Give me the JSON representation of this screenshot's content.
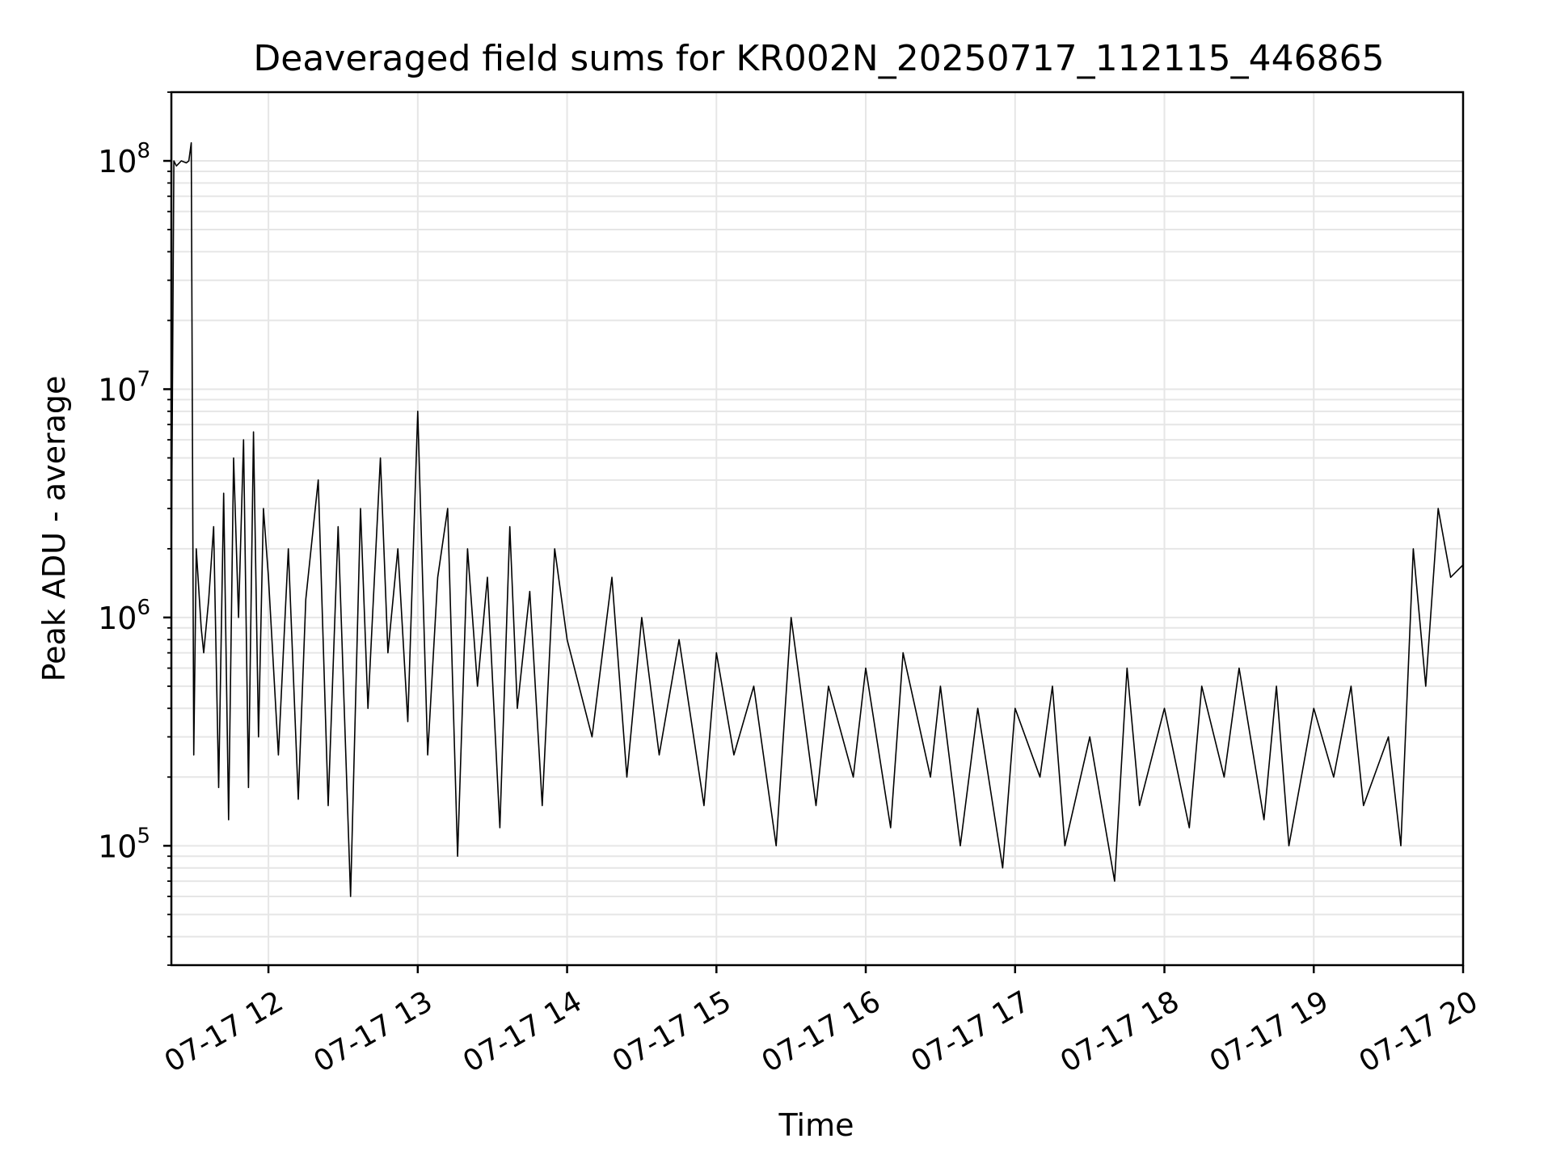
{
  "chart_data": {
    "type": "line",
    "title": "Deaveraged field sums for KR002N_20250717_112115_446865",
    "xlabel": "Time",
    "ylabel": "Peak ADU - average",
    "yscale": "log",
    "ylim": [
      30000,
      200000000
    ],
    "xlim": [
      "2025-07-17 11:21",
      "2025-07-17 20:00"
    ],
    "x_ticks": [
      {
        "value": "2025-07-17 12:00",
        "label": "07-17 12"
      },
      {
        "value": "2025-07-17 13:00",
        "label": "07-17 13"
      },
      {
        "value": "2025-07-17 14:00",
        "label": "07-17 14"
      },
      {
        "value": "2025-07-17 15:00",
        "label": "07-17 15"
      },
      {
        "value": "2025-07-17 16:00",
        "label": "07-17 16"
      },
      {
        "value": "2025-07-17 17:00",
        "label": "07-17 17"
      },
      {
        "value": "2025-07-17 18:00",
        "label": "07-17 18"
      },
      {
        "value": "2025-07-17 19:00",
        "label": "07-17 19"
      },
      {
        "value": "2025-07-17 20:00",
        "label": "07-17 20"
      }
    ],
    "y_ticks": [
      {
        "value": 100000,
        "base": "10",
        "exp": "5"
      },
      {
        "value": 1000000,
        "base": "10",
        "exp": "6"
      },
      {
        "value": 10000000,
        "base": "10",
        "exp": "7"
      },
      {
        "value": 100000000,
        "base": "10",
        "exp": "8"
      }
    ],
    "grid": true,
    "line_color": "#000000",
    "grid_color": "#e6e6e6",
    "series": [
      {
        "x": [
          "2025-07-17 11:21",
          "2025-07-17 11:22",
          "2025-07-17 11:23",
          "2025-07-17 11:25",
          "2025-07-17 11:27",
          "2025-07-17 11:28",
          "2025-07-17 11:29",
          "2025-07-17 11:30",
          "2025-07-17 11:31",
          "2025-07-17 11:33",
          "2025-07-17 11:34",
          "2025-07-17 11:36",
          "2025-07-17 11:38",
          "2025-07-17 11:40",
          "2025-07-17 11:42",
          "2025-07-17 11:44",
          "2025-07-17 11:46",
          "2025-07-17 11:48",
          "2025-07-17 11:50",
          "2025-07-17 11:52",
          "2025-07-17 11:54",
          "2025-07-17 11:56",
          "2025-07-17 11:58",
          "2025-07-17 12:00",
          "2025-07-17 12:04",
          "2025-07-17 12:08",
          "2025-07-17 12:12",
          "2025-07-17 12:15",
          "2025-07-17 12:20",
          "2025-07-17 12:24",
          "2025-07-17 12:28",
          "2025-07-17 12:33",
          "2025-07-17 12:37",
          "2025-07-17 12:40",
          "2025-07-17 12:45",
          "2025-07-17 12:48",
          "2025-07-17 12:52",
          "2025-07-17 12:56",
          "2025-07-17 13:00",
          "2025-07-17 13:04",
          "2025-07-17 13:08",
          "2025-07-17 13:12",
          "2025-07-17 13:16",
          "2025-07-17 13:20",
          "2025-07-17 13:24",
          "2025-07-17 13:28",
          "2025-07-17 13:33",
          "2025-07-17 13:37",
          "2025-07-17 13:40",
          "2025-07-17 13:45",
          "2025-07-17 13:50",
          "2025-07-17 13:55",
          "2025-07-17 14:00",
          "2025-07-17 14:10",
          "2025-07-17 14:18",
          "2025-07-17 14:24",
          "2025-07-17 14:30",
          "2025-07-17 14:37",
          "2025-07-17 14:45",
          "2025-07-17 14:55",
          "2025-07-17 15:00",
          "2025-07-17 15:07",
          "2025-07-17 15:15",
          "2025-07-17 15:24",
          "2025-07-17 15:30",
          "2025-07-17 15:40",
          "2025-07-17 15:45",
          "2025-07-17 15:55",
          "2025-07-17 16:00",
          "2025-07-17 16:10",
          "2025-07-17 16:15",
          "2025-07-17 16:26",
          "2025-07-17 16:30",
          "2025-07-17 16:38",
          "2025-07-17 16:45",
          "2025-07-17 16:55",
          "2025-07-17 17:00",
          "2025-07-17 17:10",
          "2025-07-17 17:15",
          "2025-07-17 17:20",
          "2025-07-17 17:30",
          "2025-07-17 17:40",
          "2025-07-17 17:45",
          "2025-07-17 17:50",
          "2025-07-17 18:00",
          "2025-07-17 18:10",
          "2025-07-17 18:15",
          "2025-07-17 18:24",
          "2025-07-17 18:30",
          "2025-07-17 18:40",
          "2025-07-17 18:45",
          "2025-07-17 18:50",
          "2025-07-17 19:00",
          "2025-07-17 19:08",
          "2025-07-17 19:15",
          "2025-07-17 19:20",
          "2025-07-17 19:30",
          "2025-07-17 19:35",
          "2025-07-17 19:40",
          "2025-07-17 19:45",
          "2025-07-17 19:50",
          "2025-07-17 19:55",
          "2025-07-17 20:00"
        ],
        "y": [
          1700000,
          100000000,
          95000000,
          100000000,
          98000000,
          100000000,
          120000000,
          250000,
          2000000,
          900000,
          700000,
          1200000,
          2500000,
          180000,
          3500000,
          130000,
          5000000,
          1000000,
          6000000,
          180000,
          6500000,
          300000,
          3000000,
          1500000,
          250000,
          2000000,
          160000,
          1200000,
          4000000,
          150000,
          2500000,
          60000,
          3000000,
          400000,
          5000000,
          700000,
          2000000,
          350000,
          8000000,
          250000,
          1500000,
          3000000,
          90000,
          2000000,
          500000,
          1500000,
          120000,
          2500000,
          400000,
          1300000,
          150000,
          2000000,
          800000,
          300000,
          1500000,
          200000,
          1000000,
          250000,
          800000,
          150000,
          700000,
          250000,
          500000,
          100000,
          1000000,
          150000,
          500000,
          200000,
          600000,
          120000,
          700000,
          200000,
          500000,
          100000,
          400000,
          80000,
          400000,
          200000,
          500000,
          100000,
          300000,
          70000,
          600000,
          150000,
          400000,
          120000,
          500000,
          200000,
          600000,
          130000,
          500000,
          100000,
          400000,
          200000,
          500000,
          150000,
          300000,
          100000,
          2000000,
          500000,
          3000000,
          1500000,
          1700000
        ]
      }
    ]
  }
}
